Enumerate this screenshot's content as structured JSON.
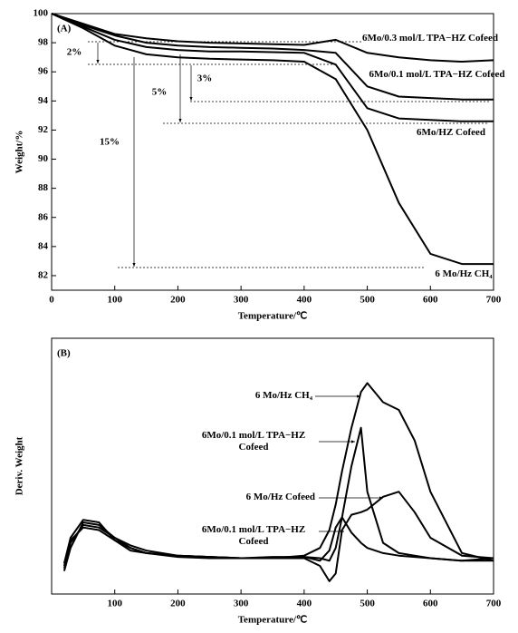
{
  "chart_data": [
    {
      "type": "line",
      "panel_label": "(A)",
      "xlabel": "Temperature/℃",
      "ylabel": "Weight/%",
      "xlim": [
        0,
        700
      ],
      "ylim": [
        81,
        100
      ],
      "xticks": [
        0,
        100,
        200,
        300,
        400,
        500,
        600,
        700
      ],
      "yticks": [
        82,
        84,
        86,
        88,
        90,
        92,
        94,
        96,
        98,
        100
      ],
      "x": [
        0,
        50,
        100,
        150,
        200,
        250,
        300,
        350,
        400,
        450,
        500,
        550,
        600,
        650,
        700
      ],
      "series": [
        {
          "name": "6Mo/0.3 mol/L TPA−HZ Cofeed",
          "color": "#000000",
          "values": [
            100,
            99.3,
            98.6,
            98.3,
            98.1,
            98.0,
            97.95,
            97.9,
            97.85,
            98.2,
            97.3,
            97.0,
            96.8,
            96.7,
            96.8
          ]
        },
        {
          "name": "6Mo/0.1 mol/L TPA−HZ Cofeed",
          "color": "#000000",
          "values": [
            100,
            99.2,
            98.5,
            98.0,
            97.8,
            97.7,
            97.65,
            97.6,
            97.5,
            97.3,
            95.0,
            94.3,
            94.2,
            94.1,
            94.1
          ]
        },
        {
          "name": "6Mo/HZ Cofeed",
          "color": "#000000",
          "values": [
            100,
            99.1,
            98.2,
            97.7,
            97.5,
            97.4,
            97.4,
            97.35,
            97.3,
            96.5,
            93.5,
            92.8,
            92.7,
            92.6,
            92.6
          ]
        },
        {
          "name": "6 Mo/Hz CH₄",
          "color": "#000000",
          "values": [
            100,
            99.0,
            97.8,
            97.2,
            97.0,
            96.9,
            96.85,
            96.8,
            96.7,
            95.5,
            92.0,
            87.0,
            83.5,
            82.8,
            82.8
          ]
        }
      ],
      "annotations": [
        "2%",
        "3%",
        "5%",
        "15%"
      ]
    },
    {
      "type": "line",
      "panel_label": "(B)",
      "xlabel": "Temperature/℃",
      "ylabel": "Deriv. Weight",
      "xlim": [
        0,
        700
      ],
      "ylim": [
        0,
        100
      ],
      "xticks": [
        100,
        200,
        300,
        400,
        500,
        600,
        700
      ],
      "x": [
        20,
        30,
        50,
        75,
        100,
        125,
        150,
        200,
        250,
        300,
        350,
        400,
        425,
        440,
        450,
        460,
        475,
        490,
        500,
        525,
        550,
        575,
        600,
        650,
        700
      ],
      "series": [
        {
          "name": "6 Mo/Hz CH₄",
          "color": "#000000",
          "values": [
            10,
            20,
            27,
            26,
            22,
            19,
            17,
            15,
            14.5,
            14,
            14,
            15,
            18,
            25,
            35,
            48,
            65,
            79,
            82.5,
            75,
            72,
            60,
            40,
            16,
            13
          ]
        },
        {
          "name": "6Mo/0.1 mol/L TPA−HZ Cofeed",
          "color": "#000000",
          "values": [
            9,
            18,
            28,
            27,
            22,
            18,
            16,
            14.5,
            14,
            14,
            14,
            14.5,
            14,
            13,
            18,
            30,
            50,
            65,
            40,
            20,
            16,
            15,
            14,
            13,
            14
          ]
        },
        {
          "name": "6 Mo/Hz Cofeed",
          "color": "#000000",
          "values": [
            12,
            22,
            29,
            28,
            21,
            17,
            16,
            15,
            14.5,
            14,
            14,
            14,
            11,
            5,
            8,
            25,
            31,
            32,
            33,
            38,
            40,
            32,
            22,
            15,
            14
          ]
        },
        {
          "name": "6Mo/0.1 mol/L TPA−HZ Cofeed",
          "color": "#000000",
          "values": [
            11,
            21,
            26,
            25,
            21,
            18,
            16,
            15,
            14.5,
            14,
            14.5,
            14.5,
            13,
            17,
            26,
            30,
            24,
            20,
            18,
            16,
            15,
            14.5,
            14,
            13,
            13
          ]
        }
      ]
    }
  ]
}
